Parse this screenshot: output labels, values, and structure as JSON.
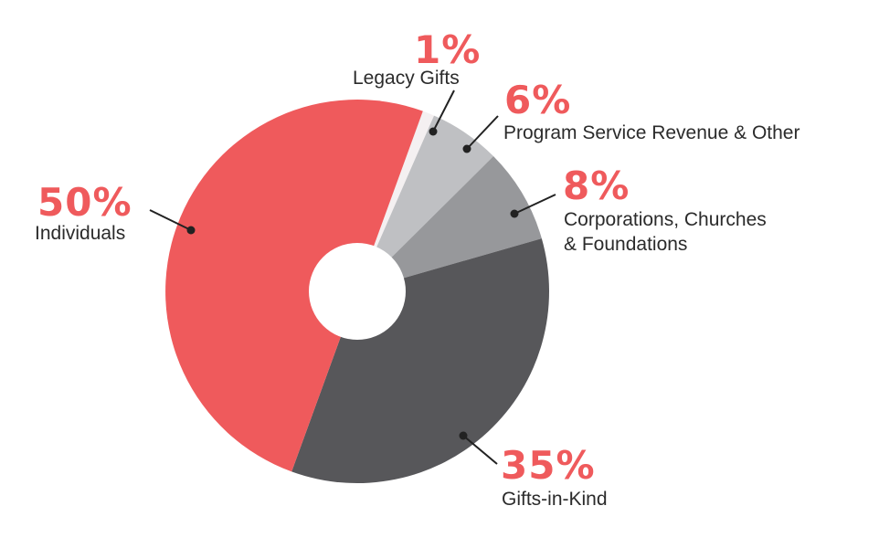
{
  "chart_data": {
    "type": "pie",
    "title": "",
    "slices": [
      {
        "name": "Legacy Gifts",
        "value": 1,
        "label": "1%",
        "color": "#f4f0f1"
      },
      {
        "name": "Program Service Revenue & Other",
        "value": 6,
        "label": "6%",
        "color": "#bfc0c3"
      },
      {
        "name": "Corporations, Churches & Foundations",
        "value": 8,
        "label": "8%",
        "color": "#97989b"
      },
      {
        "name": "Gifts-in-Kind",
        "value": 35,
        "label": "35%",
        "color": "#57575a"
      },
      {
        "name": "Individuals",
        "value": 50,
        "label": "50%",
        "color": "#ef5a5c"
      }
    ],
    "label_lines": {
      "legacy": [
        "Legacy Gifts"
      ],
      "program": [
        "Program Service Revenue & Other"
      ],
      "corporations": [
        "Corporations, Churches",
        "& Foundations"
      ],
      "gifts": [
        "Gifts-in-Kind"
      ],
      "individuals": [
        "Individuals"
      ]
    },
    "hole_color": "#ffffff",
    "accent_color": "#ef5a5c"
  }
}
